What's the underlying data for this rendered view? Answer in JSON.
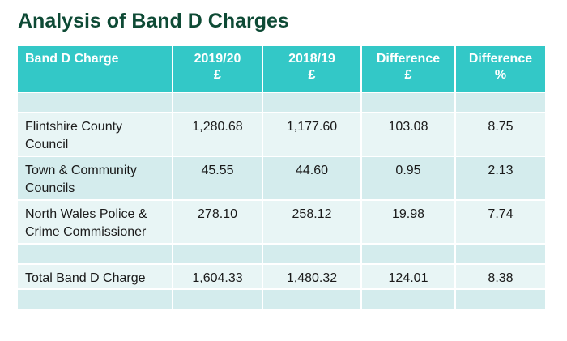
{
  "title": "Analysis of Band D Charges",
  "header": {
    "c1": "Band D Charge",
    "c2a": "2019/20",
    "c2b": "£",
    "c3a": "2018/19",
    "c3b": "£",
    "c4a": "Difference",
    "c4b": "£",
    "c5a": "Difference",
    "c5b": "%"
  },
  "rows": [
    {
      "label": "Flintshire County Council",
      "v2019": "1,280.68",
      "v2018": "1,177.60",
      "diff": "103.08",
      "pct": "8.75"
    },
    {
      "label": "Town & Community Councils",
      "v2019": "45.55",
      "v2018": "44.60",
      "diff": "0.95",
      "pct": "2.13"
    },
    {
      "label": "North Wales Police & Crime Commissioner",
      "v2019": "278.10",
      "v2018": "258.12",
      "diff": "19.98",
      "pct": "7.74"
    }
  ],
  "total": {
    "label": "Total Band D Charge",
    "v2019": "1,604.33",
    "v2018": "1,480.32",
    "diff": "124.01",
    "pct": "8.38"
  },
  "colors": {
    "header_bg": "#33c8c7",
    "row_dark": "#d4eced",
    "row_light": "#e8f5f5",
    "title": "#0e4a35"
  }
}
